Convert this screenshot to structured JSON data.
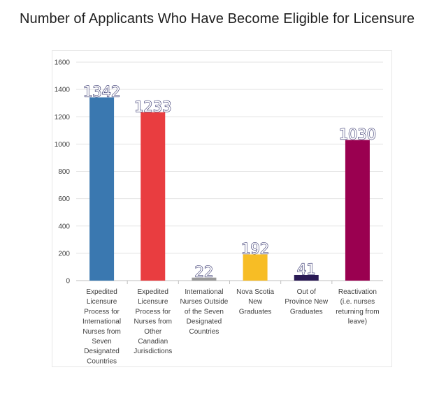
{
  "title": "Number of Applicants Who Have Become Eligible for Licensure",
  "chart_data": {
    "type": "bar",
    "title": "Number of Applicants Who Have Become Eligible for Licensure",
    "xlabel": "",
    "ylabel": "",
    "ylim": [
      0,
      1600
    ],
    "yticks": [
      0,
      200,
      400,
      600,
      800,
      1000,
      1200,
      1400,
      1600
    ],
    "grid": true,
    "legend": "none",
    "categories": [
      [
        "Expedited",
        "Licensure",
        "Process for",
        "International",
        "Nurses from",
        "Seven",
        "Designated",
        "Countries"
      ],
      [
        "Expedited",
        "Licensure",
        "Process for",
        "Nurses from",
        "Other",
        "Canadian",
        "Jurisdictions"
      ],
      [
        "International",
        "Nurses Outside",
        "of the Seven",
        "Designated",
        "Countries"
      ],
      [
        "Nova Scotia",
        "New",
        "Graduates"
      ],
      [
        "Out of",
        "Province New",
        "Graduates"
      ],
      [
        "Reactivation",
        "(i.e. nurses",
        "returning from",
        "leave)"
      ]
    ],
    "values": [
      1342,
      1233,
      22,
      192,
      41,
      1030
    ],
    "data_labels": [
      "1342",
      "1233",
      "22",
      "192",
      "41",
      "1030"
    ],
    "colors": [
      "#3a78b0",
      "#e93d40",
      "#9a9a9a",
      "#f7bd25",
      "#2a1a55",
      "#9a0050"
    ]
  }
}
